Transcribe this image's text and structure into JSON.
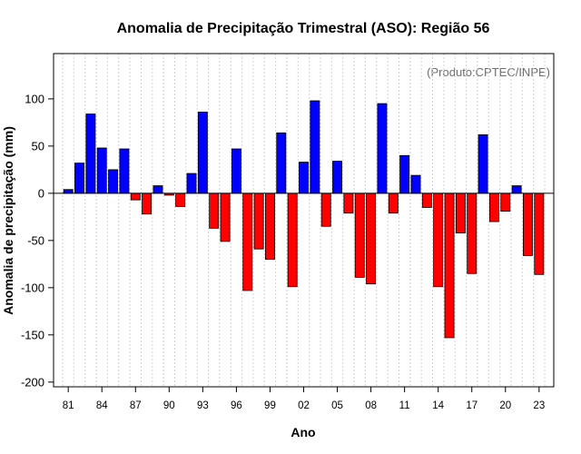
{
  "chart_data": {
    "type": "bar",
    "title": "Anomalia de Precipitação Trimestral (ASO): Região 56",
    "xlabel": "Ano",
    "ylabel": "Anomalia de precipitação (mm)",
    "credit": "(Produto:CPTEC/INPE)",
    "ylim": [
      -205,
      148
    ],
    "yticks": [
      100,
      50,
      0,
      -50,
      -100,
      -150,
      -200
    ],
    "years": [
      1981,
      1982,
      1983,
      1984,
      1985,
      1986,
      1987,
      1988,
      1989,
      1990,
      1991,
      1992,
      1993,
      1994,
      1995,
      1996,
      1997,
      1998,
      1999,
      2000,
      2001,
      2002,
      2003,
      2004,
      2005,
      2006,
      2007,
      2008,
      2009,
      2010,
      2011,
      2012,
      2013,
      2014,
      2015,
      2016,
      2017,
      2018,
      2019,
      2020,
      2021,
      2022,
      2023
    ],
    "values": [
      4,
      32,
      84,
      48,
      25,
      47,
      -7,
      -22,
      8,
      -2,
      -14,
      21,
      86,
      -37,
      -51,
      47,
      -103,
      -59,
      -70,
      64,
      -99,
      33,
      98,
      -35,
      34,
      -21,
      -89,
      -96,
      95,
      -21,
      40,
      19,
      -15,
      -99,
      -153,
      -42,
      -85,
      62,
      -30,
      -19,
      8,
      -66,
      -86
    ],
    "tick_labels": [
      {
        "index": 0,
        "label": "81"
      },
      {
        "index": 3,
        "label": "84"
      },
      {
        "index": 6,
        "label": "87"
      },
      {
        "index": 9,
        "label": "90"
      },
      {
        "index": 12,
        "label": "93"
      },
      {
        "index": 15,
        "label": "96"
      },
      {
        "index": 18,
        "label": "99"
      },
      {
        "index": 21,
        "label": "02"
      },
      {
        "index": 24,
        "label": "05"
      },
      {
        "index": 27,
        "label": "08"
      },
      {
        "index": 30,
        "label": "11"
      },
      {
        "index": 33,
        "label": "14"
      },
      {
        "index": 36,
        "label": "17"
      },
      {
        "index": 39,
        "label": "20"
      },
      {
        "index": 42,
        "label": "23"
      }
    ],
    "colors": {
      "positive": "#0000ff",
      "negative": "#ff0000",
      "grid": "#d3d3d3"
    }
  }
}
